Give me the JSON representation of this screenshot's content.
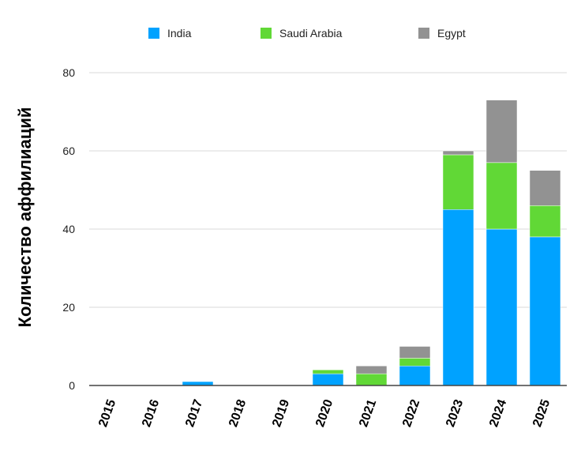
{
  "chart_data": {
    "type": "bar",
    "stacked": true,
    "title": "",
    "xlabel": "",
    "ylabel": "Количество аффилиаций",
    "ylim": [
      0,
      80
    ],
    "yticks": [
      0,
      20,
      40,
      60,
      80
    ],
    "grid": true,
    "legend_position": "top",
    "categories": [
      "2015",
      "2016",
      "2017",
      "2018",
      "2019",
      "2020",
      "2021",
      "2022",
      "2023",
      "2024",
      "2025"
    ],
    "series": [
      {
        "name": "India",
        "color": "#00a2ff",
        "values": [
          0,
          0,
          1,
          0,
          0,
          3,
          0,
          5,
          45,
          40,
          38
        ]
      },
      {
        "name": "Saudi Arabia",
        "color": "#61d836",
        "values": [
          0,
          0,
          0,
          0,
          0,
          1,
          3,
          2,
          14,
          17,
          8
        ]
      },
      {
        "name": "Egypt",
        "color": "#929292",
        "values": [
          0,
          0,
          0,
          0,
          0,
          0,
          2,
          3,
          1,
          16,
          9
        ]
      }
    ]
  }
}
